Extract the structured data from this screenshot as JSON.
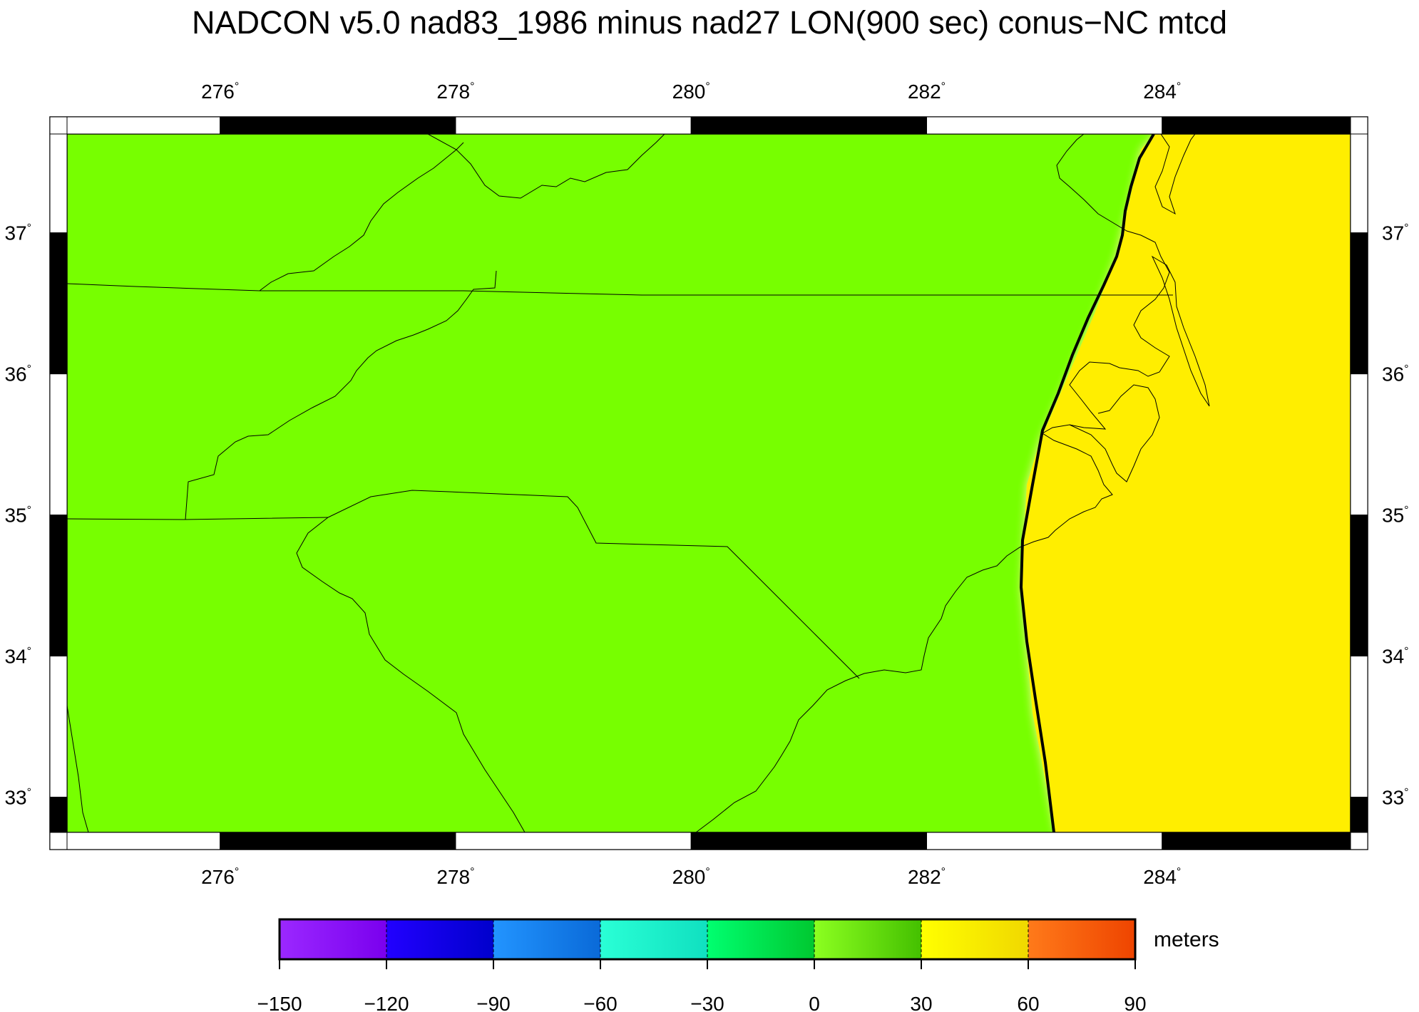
{
  "title": "NADCON v5.0 nad83_1986 minus nad27 LON(900 sec) conus−NC mtcd",
  "map": {
    "lon_range": [
      274.7,
      285.6
    ],
    "lat_range": [
      32.75,
      37.7
    ],
    "lon_ticks": [
      "276",
      "278",
      "280",
      "282",
      "284"
    ],
    "lat_ticks": [
      "33",
      "34",
      "35",
      "36",
      "37"
    ],
    "degree_symbol": "°",
    "colors": {
      "land_field": "#77ff00",
      "offshore_field": "#ffee00",
      "outline": "#000000"
    }
  },
  "colorbar": {
    "units": "meters",
    "labels": [
      "−150",
      "−120",
      "−90",
      "−60",
      "−30",
      "0",
      "30",
      "60",
      "90"
    ],
    "segments": [
      {
        "from": "#9b28ff",
        "to": "#7a00ee"
      },
      {
        "from": "#2200ff",
        "to": "#0000cc"
      },
      {
        "from": "#2294ff",
        "to": "#0a6ad8"
      },
      {
        "from": "#2affd6",
        "to": "#10e0c0"
      },
      {
        "from": "#00ff70",
        "to": "#00c830"
      },
      {
        "from": "#8cff20",
        "to": "#44c000"
      },
      {
        "from": "#ffff00",
        "to": "#f0d800"
      },
      {
        "from": "#ff7a1a",
        "to": "#ee4400"
      }
    ]
  }
}
